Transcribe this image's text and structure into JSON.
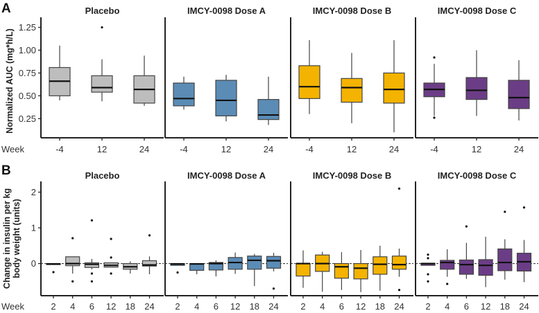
{
  "chart_data": [
    {
      "type": "box",
      "panel_label": "A",
      "ylabel": "Normalized AUC (mg*h/L)",
      "xlabel": "Week",
      "ylim": [
        0.04,
        1.36
      ],
      "yticks": [
        0.25,
        0.5,
        0.75,
        1.0
      ],
      "ytick_labels": [
        "0.25",
        "0.50",
        "0.75",
        "1.00",
        "1.25"
      ],
      "ytick_values": [
        0.25,
        0.5,
        0.75,
        1.0,
        1.25
      ],
      "categories": [
        "-4",
        "12",
        "24"
      ],
      "panels": [
        {
          "title": "Placebo",
          "color": "#bdbdbd",
          "boxes": [
            {
              "low": 0.45,
              "q1": 0.5,
              "med": 0.66,
              "q3": 0.81,
              "high": 1.05,
              "outliers": []
            },
            {
              "low": 0.44,
              "q1": 0.54,
              "med": 0.59,
              "q3": 0.72,
              "high": 0.9,
              "outliers": [
                1.25
              ]
            },
            {
              "low": 0.39,
              "q1": 0.42,
              "med": 0.57,
              "q3": 0.72,
              "high": 0.94,
              "outliers": []
            }
          ]
        },
        {
          "title": "IMCY-0098 Dose A",
          "color": "#5b8cb6",
          "boxes": [
            {
              "low": 0.35,
              "q1": 0.39,
              "med": 0.47,
              "q3": 0.64,
              "high": 0.71,
              "outliers": []
            },
            {
              "low": 0.22,
              "q1": 0.28,
              "med": 0.45,
              "q3": 0.67,
              "high": 0.73,
              "outliers": []
            },
            {
              "low": 0.18,
              "q1": 0.24,
              "med": 0.29,
              "q3": 0.46,
              "high": 0.71,
              "outliers": []
            }
          ]
        },
        {
          "title": "IMCY-0098 Dose B",
          "color": "#f4b300",
          "boxes": [
            {
              "low": 0.3,
              "q1": 0.47,
              "med": 0.6,
              "q3": 0.83,
              "high": 1.11,
              "outliers": []
            },
            {
              "low": 0.2,
              "q1": 0.43,
              "med": 0.59,
              "q3": 0.69,
              "high": 0.97,
              "outliers": []
            },
            {
              "low": 0.1,
              "q1": 0.42,
              "med": 0.57,
              "q3": 0.75,
              "high": 1.11,
              "outliers": []
            }
          ]
        },
        {
          "title": "IMCY-0098 Dose C",
          "color": "#6b3d86",
          "boxes": [
            {
              "low": 0.28,
              "q1": 0.49,
              "med": 0.57,
              "q3": 0.64,
              "high": 0.85,
              "outliers": [
                0.92,
                0.26
              ]
            },
            {
              "low": 0.28,
              "q1": 0.46,
              "med": 0.56,
              "q3": 0.7,
              "high": 1.0,
              "outliers": []
            },
            {
              "low": 0.23,
              "q1": 0.36,
              "med": 0.48,
              "q3": 0.67,
              "high": 0.89,
              "outliers": []
            }
          ]
        }
      ]
    },
    {
      "type": "box",
      "panel_label": "B",
      "ylabel": "Change in insulin per kg body weight (units)",
      "ylabel_lines": [
        "Change in insulin per kg",
        "body weight (units)"
      ],
      "xlabel": "Week",
      "ylim": [
        -0.9,
        2.3
      ],
      "ytick_labels": [
        "0",
        "1",
        "2"
      ],
      "ytick_values": [
        0,
        1,
        2
      ],
      "reference_line": 0,
      "categories": [
        "2",
        "4",
        "6",
        "12",
        "18",
        "24"
      ],
      "panels": [
        {
          "title": "Placebo",
          "color": "#bdbdbd",
          "boxes": [
            {
              "low": -0.02,
              "q1": -0.01,
              "med": -0.01,
              "q3": 0.0,
              "high": 0.0,
              "outliers": [
                -0.24
              ]
            },
            {
              "low": -0.28,
              "q1": -0.06,
              "med": 0.0,
              "q3": 0.19,
              "high": 0.19,
              "outliers": [
                0.71,
                -0.5
              ]
            },
            {
              "low": -0.16,
              "q1": -0.11,
              "med": -0.02,
              "q3": 0.02,
              "high": 0.13,
              "outliers": [
                1.21,
                -0.28,
                -0.5
              ]
            },
            {
              "low": -0.1,
              "q1": -0.1,
              "med": -0.05,
              "q3": 0.02,
              "high": 0.02,
              "outliers": [
                0.69,
                0.17,
                -0.28
              ]
            },
            {
              "low": -0.28,
              "q1": -0.16,
              "med": -0.09,
              "q3": 0.0,
              "high": 0.06,
              "outliers": []
            },
            {
              "low": -0.3,
              "q1": -0.07,
              "med": -0.04,
              "q3": 0.08,
              "high": 0.2,
              "outliers": [
                0.79
              ]
            }
          ]
        },
        {
          "title": "IMCY-0098 Dose A",
          "color": "#5b8cb6",
          "boxes": [
            {
              "low": -0.05,
              "q1": -0.05,
              "med": -0.01,
              "q3": 0.0,
              "high": 0.0,
              "outliers": [
                -0.25
              ]
            },
            {
              "low": -0.3,
              "q1": -0.19,
              "med": -0.01,
              "q3": 0.0,
              "high": 0.0,
              "outliers": []
            },
            {
              "low": -0.36,
              "q1": -0.18,
              "med": 0.0,
              "q3": 0.03,
              "high": 0.09,
              "outliers": []
            },
            {
              "low": -0.29,
              "q1": -0.16,
              "med": 0.03,
              "q3": 0.17,
              "high": 0.31,
              "outliers": []
            },
            {
              "low": -0.63,
              "q1": -0.16,
              "med": 0.09,
              "q3": 0.21,
              "high": 0.27,
              "outliers": []
            },
            {
              "low": -0.22,
              "q1": -0.13,
              "med": 0.08,
              "q3": 0.2,
              "high": 0.3,
              "outliers": [
                -0.7
              ]
            }
          ]
        },
        {
          "title": "IMCY-0098 Dose B",
          "color": "#f4b300",
          "boxes": [
            {
              "low": -0.68,
              "q1": -0.35,
              "med": 0.0,
              "q3": 0.0,
              "high": 0.37,
              "outliers": []
            },
            {
              "low": -0.79,
              "q1": -0.22,
              "med": 0.0,
              "q3": 0.24,
              "high": 0.33,
              "outliers": []
            },
            {
              "low": -0.74,
              "q1": -0.41,
              "med": -0.09,
              "q3": 0.0,
              "high": 0.32,
              "outliers": []
            },
            {
              "low": -0.8,
              "q1": -0.43,
              "med": -0.13,
              "q3": 0.0,
              "high": 0.38,
              "outliers": []
            },
            {
              "low": -0.76,
              "q1": -0.3,
              "med": -0.02,
              "q3": 0.19,
              "high": 0.5,
              "outliers": []
            },
            {
              "low": -0.37,
              "q1": -0.16,
              "med": -0.03,
              "q3": 0.21,
              "high": 0.42,
              "outliers": [
                2.1,
                -0.74
              ]
            }
          ]
        },
        {
          "title": "IMCY-0098 Dose C",
          "color": "#6b3d86",
          "boxes": [
            {
              "low": -0.05,
              "q1": -0.05,
              "med": 0.0,
              "q3": 0.01,
              "high": 0.01,
              "outliers": [
                0.25,
                0.15,
                -0.3,
                -0.5
              ]
            },
            {
              "low": -0.37,
              "q1": -0.16,
              "med": 0.03,
              "q3": 0.09,
              "high": 0.4,
              "outliers": [
                -0.57
              ]
            },
            {
              "low": -0.43,
              "q1": -0.3,
              "med": -0.03,
              "q3": 0.1,
              "high": 0.58,
              "outliers": [
                1.04
              ]
            },
            {
              "low": -0.66,
              "q1": -0.33,
              "med": -0.05,
              "q3": 0.11,
              "high": 0.75,
              "outliers": []
            },
            {
              "low": -0.45,
              "q1": -0.2,
              "med": 0.03,
              "q3": 0.41,
              "high": 0.68,
              "outliers": [
                1.45
              ]
            },
            {
              "low": -0.52,
              "q1": -0.21,
              "med": 0.05,
              "q3": 0.29,
              "high": 0.66,
              "outliers": [
                1.57
              ]
            }
          ]
        }
      ]
    }
  ]
}
